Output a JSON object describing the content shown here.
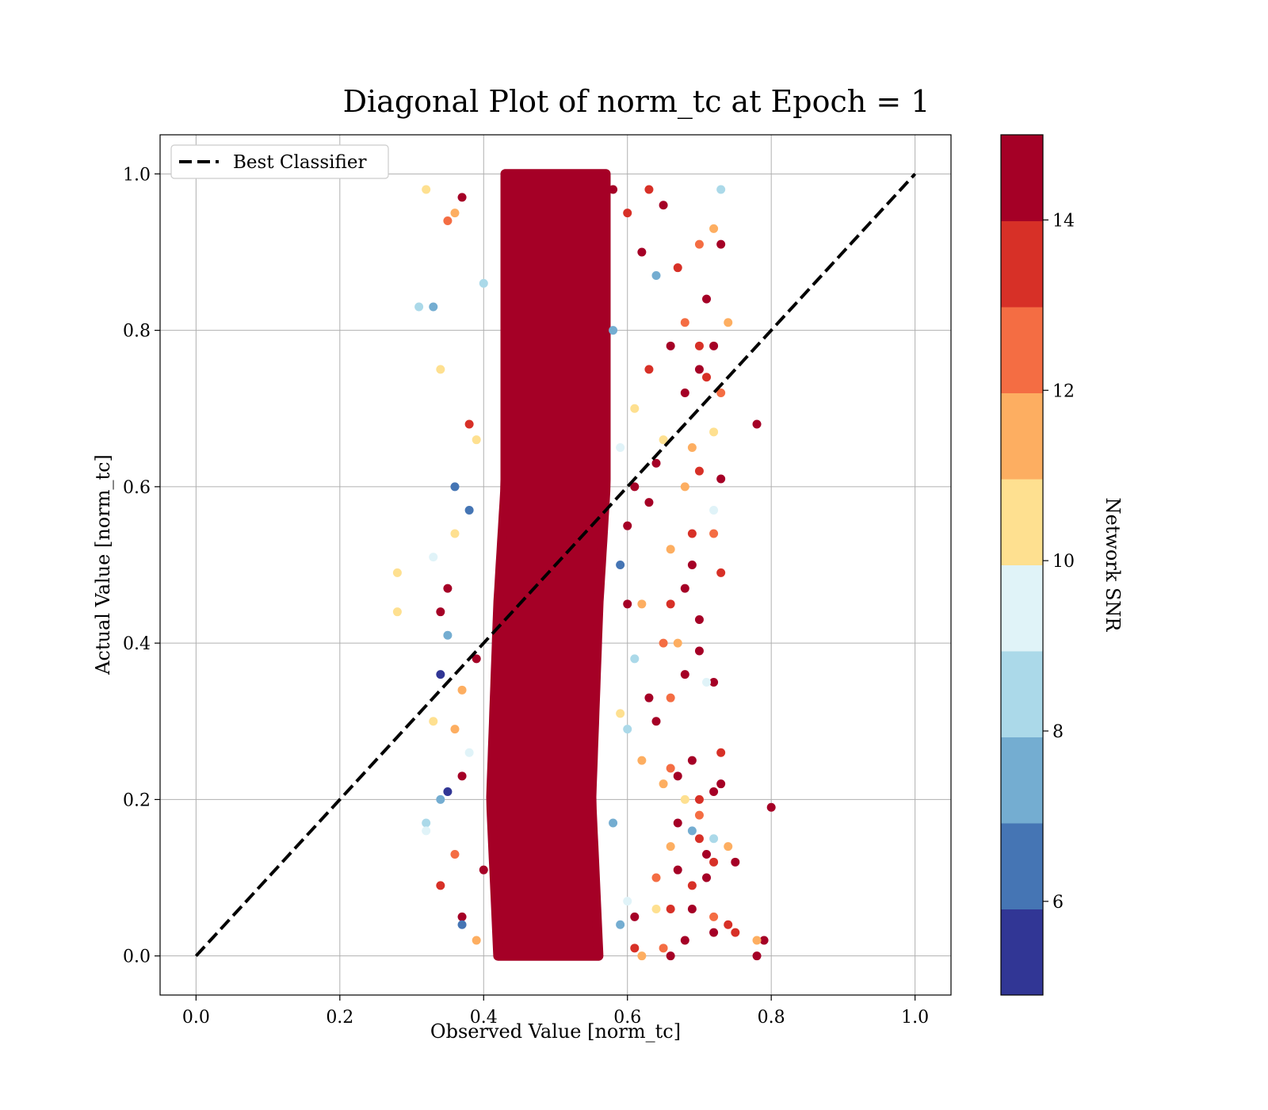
{
  "chart_data": {
    "type": "scatter",
    "title": "Diagonal Plot of norm_tc at Epoch = 1",
    "xlabel": "Observed Value [norm_tc]",
    "ylabel": "Actual Value [norm_tc]",
    "xlim": [
      -0.05,
      1.05
    ],
    "ylim": [
      -0.05,
      1.05
    ],
    "xticks": [
      "0.0",
      "0.2",
      "0.4",
      "0.6",
      "0.8",
      "1.0"
    ],
    "yticks": [
      "0.0",
      "0.2",
      "0.4",
      "0.6",
      "0.8",
      "1.0"
    ],
    "grid": true,
    "legend": {
      "placement": "top-left",
      "entries": [
        "Best Classifier"
      ]
    },
    "reference_line": {
      "name": "Best Classifier",
      "style": "dashed",
      "color": "#000000",
      "x": [
        0.0,
        1.0
      ],
      "y": [
        0.0,
        1.0
      ]
    },
    "points": [
      [
        0.32,
        0.98,
        10.5
      ],
      [
        0.35,
        0.94,
        12.2
      ],
      [
        0.33,
        0.83,
        7.5
      ],
      [
        0.31,
        0.83,
        8.2
      ],
      [
        0.36,
        0.95,
        11.5
      ],
      [
        0.37,
        0.97,
        14.5
      ],
      [
        0.34,
        0.75,
        10.5
      ],
      [
        0.38,
        0.68,
        13.0
      ],
      [
        0.36,
        0.6,
        6.5
      ],
      [
        0.33,
        0.51,
        9.5
      ],
      [
        0.28,
        0.49,
        10.8
      ],
      [
        0.28,
        0.44,
        10.5
      ],
      [
        0.35,
        0.47,
        14.5
      ],
      [
        0.34,
        0.44,
        14.8
      ],
      [
        0.34,
        0.36,
        5.5
      ],
      [
        0.33,
        0.3,
        10.0
      ],
      [
        0.36,
        0.29,
        11.8
      ],
      [
        0.37,
        0.23,
        14.5
      ],
      [
        0.34,
        0.2,
        7.5
      ],
      [
        0.32,
        0.17,
        8.5
      ],
      [
        0.32,
        0.16,
        9.5
      ],
      [
        0.36,
        0.13,
        12.5
      ],
      [
        0.34,
        0.09,
        13.5
      ],
      [
        0.37,
        0.05,
        14.5
      ],
      [
        0.37,
        0.04,
        6.5
      ],
      [
        0.39,
        0.02,
        11.5
      ],
      [
        0.38,
        0.57,
        6.0
      ],
      [
        0.39,
        0.38,
        14.8
      ],
      [
        0.4,
        0.86,
        8.5
      ],
      [
        0.39,
        0.66,
        10.5
      ],
      [
        0.38,
        0.26,
        9.0
      ],
      [
        0.4,
        0.11,
        14.5
      ],
      [
        0.36,
        0.54,
        10.5
      ],
      [
        0.35,
        0.41,
        7.0
      ],
      [
        0.37,
        0.34,
        11.0
      ],
      [
        0.35,
        0.21,
        5.8
      ],
      [
        0.58,
        0.98,
        14.5
      ],
      [
        0.6,
        0.95,
        13.5
      ],
      [
        0.63,
        0.98,
        13.5
      ],
      [
        0.62,
        0.9,
        14.8
      ],
      [
        0.65,
        0.96,
        14.5
      ],
      [
        0.64,
        0.87,
        7.5
      ],
      [
        0.67,
        0.88,
        13.0
      ],
      [
        0.7,
        0.91,
        12.5
      ],
      [
        0.72,
        0.93,
        11.5
      ],
      [
        0.73,
        0.91,
        14.8
      ],
      [
        0.71,
        0.84,
        14.8
      ],
      [
        0.68,
        0.81,
        12.0
      ],
      [
        0.66,
        0.78,
        14.5
      ],
      [
        0.7,
        0.78,
        13.5
      ],
      [
        0.72,
        0.78,
        14.8
      ],
      [
        0.74,
        0.81,
        11.5
      ],
      [
        0.63,
        0.75,
        13.5
      ],
      [
        0.68,
        0.72,
        14.5
      ],
      [
        0.7,
        0.75,
        14.8
      ],
      [
        0.71,
        0.74,
        13.5
      ],
      [
        0.73,
        0.72,
        12.5
      ],
      [
        0.78,
        0.68,
        14.8
      ],
      [
        0.72,
        0.67,
        10.5
      ],
      [
        0.69,
        0.65,
        11.5
      ],
      [
        0.65,
        0.66,
        10.0
      ],
      [
        0.7,
        0.62,
        13.5
      ],
      [
        0.73,
        0.61,
        14.8
      ],
      [
        0.68,
        0.6,
        11.8
      ],
      [
        0.63,
        0.58,
        14.5
      ],
      [
        0.72,
        0.57,
        9.5
      ],
      [
        0.69,
        0.54,
        13.0
      ],
      [
        0.72,
        0.54,
        12.5
      ],
      [
        0.66,
        0.52,
        11.5
      ],
      [
        0.69,
        0.5,
        14.8
      ],
      [
        0.73,
        0.49,
        13.5
      ],
      [
        0.68,
        0.47,
        14.8
      ],
      [
        0.66,
        0.45,
        13.0
      ],
      [
        0.7,
        0.43,
        14.8
      ],
      [
        0.65,
        0.4,
        12.5
      ],
      [
        0.67,
        0.4,
        11.8
      ],
      [
        0.7,
        0.39,
        14.5
      ],
      [
        0.68,
        0.36,
        14.5
      ],
      [
        0.72,
        0.35,
        14.8
      ],
      [
        0.71,
        0.35,
        9.5
      ],
      [
        0.66,
        0.33,
        12.0
      ],
      [
        0.63,
        0.33,
        14.5
      ],
      [
        0.64,
        0.3,
        14.8
      ],
      [
        0.6,
        0.29,
        8.5
      ],
      [
        0.62,
        0.25,
        11.5
      ],
      [
        0.66,
        0.24,
        12.0
      ],
      [
        0.69,
        0.25,
        14.8
      ],
      [
        0.73,
        0.26,
        13.5
      ],
      [
        0.67,
        0.23,
        14.5
      ],
      [
        0.65,
        0.22,
        11.5
      ],
      [
        0.72,
        0.21,
        14.8
      ],
      [
        0.73,
        0.22,
        14.8
      ],
      [
        0.7,
        0.2,
        13.5
      ],
      [
        0.68,
        0.2,
        10.5
      ],
      [
        0.8,
        0.19,
        14.8
      ],
      [
        0.7,
        0.18,
        12.5
      ],
      [
        0.67,
        0.17,
        14.5
      ],
      [
        0.7,
        0.15,
        13.5
      ],
      [
        0.72,
        0.15,
        8.5
      ],
      [
        0.69,
        0.16,
        7.5
      ],
      [
        0.66,
        0.14,
        11.5
      ],
      [
        0.71,
        0.13,
        14.5
      ],
      [
        0.74,
        0.14,
        11.5
      ],
      [
        0.75,
        0.12,
        14.8
      ],
      [
        0.72,
        0.12,
        13.5
      ],
      [
        0.67,
        0.11,
        14.8
      ],
      [
        0.64,
        0.1,
        12.5
      ],
      [
        0.69,
        0.09,
        13.5
      ],
      [
        0.71,
        0.1,
        14.8
      ],
      [
        0.66,
        0.06,
        13.5
      ],
      [
        0.69,
        0.06,
        14.5
      ],
      [
        0.72,
        0.05,
        12.5
      ],
      [
        0.74,
        0.04,
        13.0
      ],
      [
        0.75,
        0.03,
        13.5
      ],
      [
        0.72,
        0.03,
        14.8
      ],
      [
        0.78,
        0.0,
        14.8
      ],
      [
        0.79,
        0.02,
        14.8
      ],
      [
        0.78,
        0.02,
        11.5
      ],
      [
        0.68,
        0.02,
        14.5
      ],
      [
        0.65,
        0.01,
        12.5
      ],
      [
        0.61,
        0.01,
        13.5
      ],
      [
        0.62,
        0.0,
        11.5
      ],
      [
        0.66,
        0.0,
        14.8
      ],
      [
        0.73,
        0.98,
        8.5
      ],
      [
        0.61,
        0.6,
        14.8
      ],
      [
        0.6,
        0.55,
        14.8
      ],
      [
        0.58,
        0.8,
        7.0
      ],
      [
        0.59,
        0.65,
        9.0
      ],
      [
        0.61,
        0.7,
        10.5
      ],
      [
        0.64,
        0.63,
        14.5
      ],
      [
        0.6,
        0.45,
        14.8
      ],
      [
        0.62,
        0.45,
        11.5
      ],
      [
        0.59,
        0.5,
        6.5
      ],
      [
        0.61,
        0.38,
        8.0
      ],
      [
        0.59,
        0.31,
        10.0
      ],
      [
        0.58,
        0.17,
        7.0
      ],
      [
        0.6,
        0.07,
        9.0
      ],
      [
        0.61,
        0.05,
        14.5
      ],
      [
        0.59,
        0.04,
        7.5
      ],
      [
        0.64,
        0.06,
        10.5
      ]
    ],
    "dense_band": {
      "color_value": 15.0,
      "y_range": [
        0.0,
        1.0
      ],
      "x_centers": [
        [
          0.0,
          0.49
        ],
        [
          0.2,
          0.48
        ],
        [
          0.45,
          0.49
        ],
        [
          0.6,
          0.5
        ],
        [
          0.8,
          0.5
        ],
        [
          1.0,
          0.5
        ]
      ],
      "x_halfwidth": 0.07
    },
    "colorbar": {
      "label": "Network SNR",
      "range": [
        4.9,
        15.0
      ],
      "ticks": [
        "6",
        "8",
        "10",
        "12",
        "14"
      ],
      "colors": [
        "#313695",
        "#4575b4",
        "#74add1",
        "#abd9e9",
        "#e0f3f8",
        "#fee090",
        "#fdae61",
        "#f46d43",
        "#d73027",
        "#a50026"
      ]
    }
  }
}
